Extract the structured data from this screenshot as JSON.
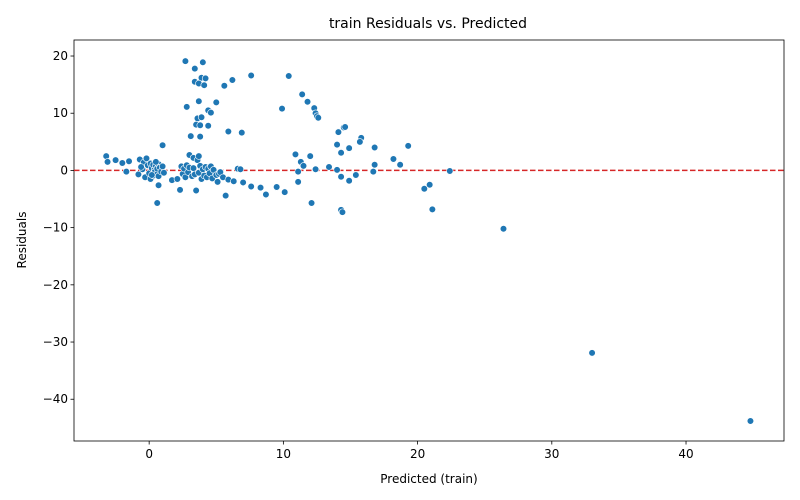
{
  "chart_data": {
    "type": "scatter",
    "title": "train Residuals vs. Predicted",
    "xlabel": "Predicted (train)",
    "ylabel": "Residuals",
    "xlim": [
      -5.6,
      47.3
    ],
    "ylim": [
      -47.3,
      22.8
    ],
    "xticks": [
      0,
      10,
      20,
      30,
      40
    ],
    "yticks": [
      -40,
      -30,
      -20,
      -10,
      0,
      10,
      20
    ],
    "grid": false,
    "reference_line": {
      "y": 0,
      "color": "#d62728",
      "style": "dashed"
    },
    "marker_color": "#1f77b4",
    "points": [
      [
        -3.2,
        2.5
      ],
      [
        -3.1,
        1.5
      ],
      [
        -2.5,
        1.8
      ],
      [
        -2.0,
        1.3
      ],
      [
        -1.7,
        -0.2
      ],
      [
        -1.5,
        1.6
      ],
      [
        -0.8,
        -0.7
      ],
      [
        -0.7,
        1.9
      ],
      [
        -0.5,
        0.2
      ],
      [
        -0.4,
        1.4
      ],
      [
        -0.3,
        -1.2
      ],
      [
        -0.2,
        2.1
      ],
      [
        -0.1,
        0.9
      ],
      [
        0.0,
        -0.5
      ],
      [
        0.1,
        1.2
      ],
      [
        0.1,
        -1.5
      ],
      [
        0.2,
        0.4
      ],
      [
        0.3,
        -0.9
      ],
      [
        0.3,
        1.0
      ],
      [
        0.4,
        0.1
      ],
      [
        0.4,
        -0.3
      ],
      [
        0.5,
        0.8
      ],
      [
        0.6,
        -0.6
      ],
      [
        0.6,
        0.3
      ],
      [
        0.7,
        1.1
      ],
      [
        0.7,
        -1.0
      ],
      [
        0.8,
        0.5
      ],
      [
        0.9,
        -0.2
      ],
      [
        1.0,
        0.7
      ],
      [
        1.1,
        -0.4
      ],
      [
        0.6,
        -5.7
      ],
      [
        0.7,
        -2.6
      ],
      [
        1.0,
        4.4
      ],
      [
        0.5,
        1.5
      ],
      [
        0.2,
        -0.8
      ],
      [
        -0.6,
        0.6
      ],
      [
        1.7,
        -1.7
      ],
      [
        2.1,
        -1.5
      ],
      [
        2.3,
        -3.4
      ],
      [
        2.4,
        0.7
      ],
      [
        2.5,
        -0.6
      ],
      [
        2.6,
        0.3
      ],
      [
        2.7,
        -1.2
      ],
      [
        2.8,
        0.9
      ],
      [
        2.9,
        -0.3
      ],
      [
        3.0,
        0.5
      ],
      [
        3.0,
        2.7
      ],
      [
        3.1,
        5.9
      ],
      [
        3.2,
        -1.0
      ],
      [
        3.3,
        0.4
      ],
      [
        3.3,
        2.2
      ],
      [
        3.4,
        -0.7
      ],
      [
        3.5,
        -3.5
      ],
      [
        3.6,
        1.8
      ],
      [
        3.7,
        2.5
      ],
      [
        3.7,
        -0.4
      ],
      [
        3.8,
        0.8
      ],
      [
        3.9,
        -1.5
      ],
      [
        4.0,
        0.2
      ],
      [
        4.1,
        -0.9
      ],
      [
        4.2,
        0.6
      ],
      [
        4.3,
        -1.2
      ],
      [
        4.4,
        0.3
      ],
      [
        4.5,
        -0.5
      ],
      [
        4.6,
        0.7
      ],
      [
        4.7,
        -1.4
      ],
      [
        4.8,
        0.1
      ],
      [
        5.0,
        -0.8
      ],
      [
        5.1,
        -2.0
      ],
      [
        5.2,
        -0.6
      ],
      [
        5.3,
        -0.3
      ],
      [
        5.5,
        -1.2
      ],
      [
        5.7,
        -4.4
      ],
      [
        5.9,
        -1.6
      ],
      [
        6.3,
        -1.9
      ],
      [
        6.6,
        0.3
      ],
      [
        6.8,
        0.2
      ],
      [
        7.0,
        -2.1
      ],
      [
        7.6,
        -2.8
      ],
      [
        8.3,
        -3.0
      ],
      [
        8.7,
        -4.2
      ],
      [
        9.5,
        -2.9
      ],
      [
        10.1,
        -3.8
      ],
      [
        2.7,
        19.1
      ],
      [
        3.4,
        17.8
      ],
      [
        3.9,
        16.2
      ],
      [
        4.0,
        18.9
      ],
      [
        4.2,
        16.1
      ],
      [
        3.4,
        15.5
      ],
      [
        3.7,
        15.2
      ],
      [
        4.1,
        14.9
      ],
      [
        5.6,
        14.8
      ],
      [
        6.2,
        15.8
      ],
      [
        7.6,
        16.6
      ],
      [
        10.4,
        16.5
      ],
      [
        2.8,
        11.1
      ],
      [
        3.7,
        12.1
      ],
      [
        4.4,
        10.5
      ],
      [
        4.6,
        10.1
      ],
      [
        5.0,
        11.9
      ],
      [
        3.6,
        9.1
      ],
      [
        3.9,
        9.3
      ],
      [
        3.5,
        8.0
      ],
      [
        3.8,
        7.9
      ],
      [
        4.4,
        7.8
      ],
      [
        3.1,
        6.0
      ],
      [
        3.8,
        5.9
      ],
      [
        5.9,
        6.8
      ],
      [
        6.9,
        6.6
      ],
      [
        9.9,
        10.8
      ],
      [
        11.4,
        13.3
      ],
      [
        11.8,
        12.0
      ],
      [
        12.3,
        10.9
      ],
      [
        12.4,
        10.0
      ],
      [
        12.5,
        9.5
      ],
      [
        12.6,
        9.2
      ],
      [
        14.1,
        6.7
      ],
      [
        14.5,
        7.5
      ],
      [
        14.6,
        7.6
      ],
      [
        15.8,
        5.7
      ],
      [
        15.7,
        5.0
      ],
      [
        14.0,
        4.5
      ],
      [
        14.9,
        3.9
      ],
      [
        14.3,
        3.1
      ],
      [
        10.9,
        2.8
      ],
      [
        12.0,
        2.5
      ],
      [
        16.8,
        4.0
      ],
      [
        19.3,
        4.3
      ],
      [
        18.2,
        2.0
      ],
      [
        18.7,
        1.0
      ],
      [
        16.8,
        1.0
      ],
      [
        11.3,
        1.5
      ],
      [
        11.5,
        0.8
      ],
      [
        13.4,
        0.6
      ],
      [
        12.4,
        0.2
      ],
      [
        14.0,
        0.1
      ],
      [
        16.7,
        -0.2
      ],
      [
        11.1,
        -0.2
      ],
      [
        11.1,
        -2.0
      ],
      [
        14.3,
        -1.1
      ],
      [
        14.9,
        -1.8
      ],
      [
        15.4,
        -0.8
      ],
      [
        12.1,
        -5.7
      ],
      [
        14.3,
        -6.9
      ],
      [
        14.4,
        -7.3
      ],
      [
        20.5,
        -3.2
      ],
      [
        20.9,
        -2.5
      ],
      [
        21.1,
        -6.8
      ],
      [
        22.4,
        -0.1
      ],
      [
        26.4,
        -10.2
      ],
      [
        33.0,
        -31.9
      ],
      [
        44.8,
        -43.8
      ]
    ]
  }
}
